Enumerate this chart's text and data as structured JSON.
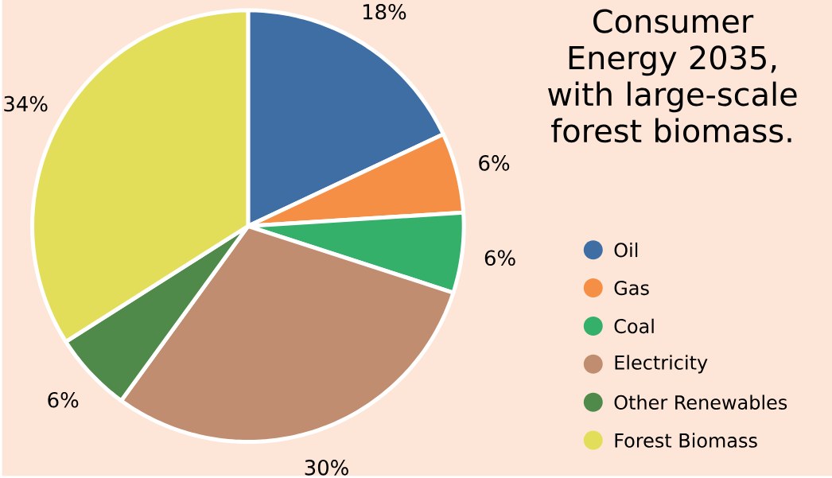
{
  "chart_data": {
    "type": "pie",
    "title": "Consumer Energy 2035, with large-scale forest biomass.",
    "categories": [
      "Oil",
      "Gas",
      "Coal",
      "Electricity",
      "Other Renewables",
      "Forest Biomass"
    ],
    "values": [
      18,
      6,
      6,
      30,
      6,
      34
    ],
    "value_labels": [
      "18%",
      "6%",
      "6%",
      "30%",
      "6%",
      "34%"
    ],
    "colors": [
      "#3e6ea3",
      "#f58f45",
      "#35b06b",
      "#c08d70",
      "#4f8a4a",
      "#e3de5a"
    ],
    "legend": "right"
  }
}
